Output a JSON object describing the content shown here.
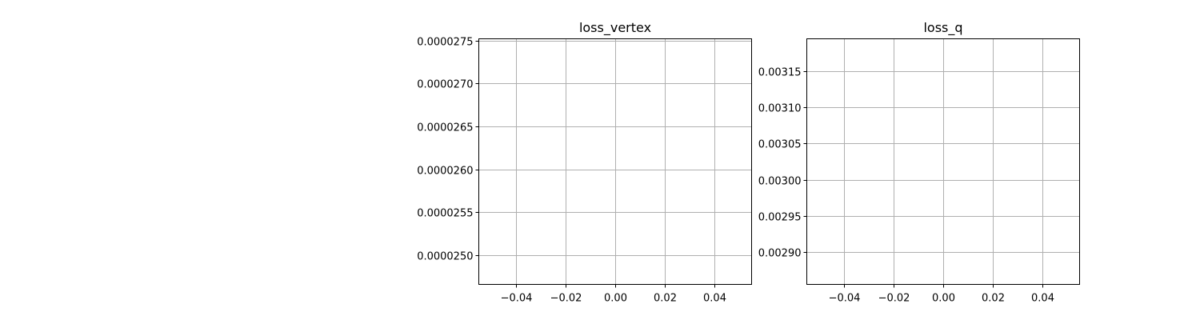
{
  "chart_data": [
    {
      "type": "line",
      "title": "loss_vertex",
      "xlabel": "",
      "ylabel": "",
      "grid": true,
      "xlim": [
        -0.055,
        0.055
      ],
      "ylim": [
        2.466e-05,
        2.752e-05
      ],
      "x_ticks": [
        -0.04,
        -0.02,
        0.0,
        0.02,
        0.04
      ],
      "x_tick_labels": [
        "−0.04",
        "−0.02",
        "0.00",
        "0.02",
        "0.04"
      ],
      "y_ticks": [
        2.5e-05,
        2.55e-05,
        2.6e-05,
        2.65e-05,
        2.7e-05,
        2.75e-05
      ],
      "y_tick_labels": [
        "0.0000250",
        "0.0000255",
        "0.0000260",
        "0.0000265",
        "0.0000270",
        "0.0000275"
      ],
      "series": [
        {
          "values": []
        }
      ]
    },
    {
      "type": "line",
      "title": "loss_q",
      "xlabel": "",
      "ylabel": "",
      "grid": true,
      "xlim": [
        -0.055,
        0.055
      ],
      "ylim": [
        0.002855,
        0.003195
      ],
      "x_ticks": [
        -0.04,
        -0.02,
        0.0,
        0.02,
        0.04
      ],
      "x_tick_labels": [
        "−0.04",
        "−0.02",
        "0.00",
        "0.02",
        "0.04"
      ],
      "y_ticks": [
        0.0029,
        0.00295,
        0.003,
        0.00305,
        0.0031,
        0.00315
      ],
      "y_tick_labels": [
        "0.00290",
        "0.00295",
        "0.00300",
        "0.00305",
        "0.00310",
        "0.00315"
      ],
      "series": [
        {
          "values": []
        }
      ]
    }
  ]
}
